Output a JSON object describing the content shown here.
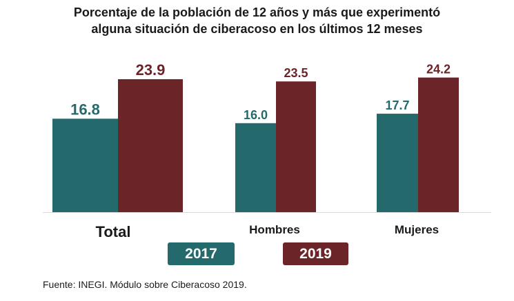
{
  "chart_data": {
    "type": "bar",
    "title": "Porcentaje de la población de 12 años y más que experimentó alguna situación de ciberacoso en los últimos 12 meses",
    "title_lines": [
      "Porcentaje de la población de 12 años y más que experimentó",
      "alguna situación de ciberacoso en los últimos 12 meses"
    ],
    "categories": [
      "Total",
      "Hombres",
      "Mujeres"
    ],
    "series": [
      {
        "name": "2017",
        "values": [
          16.8,
          16.0,
          17.7
        ],
        "labels": [
          "16.8",
          "16.0",
          "17.7"
        ],
        "color": "#24696b"
      },
      {
        "name": "2019",
        "values": [
          23.9,
          23.5,
          24.2
        ],
        "labels": [
          "23.9",
          "23.5",
          "24.2"
        ],
        "color": "#6b2428"
      }
    ],
    "xlabel": "",
    "ylabel": "",
    "ylim": [
      0,
      26
    ],
    "legend_position": "bottom-center",
    "grid": false
  },
  "source": "Fuente: INEGI. Módulo sobre Ciberacoso 2019."
}
